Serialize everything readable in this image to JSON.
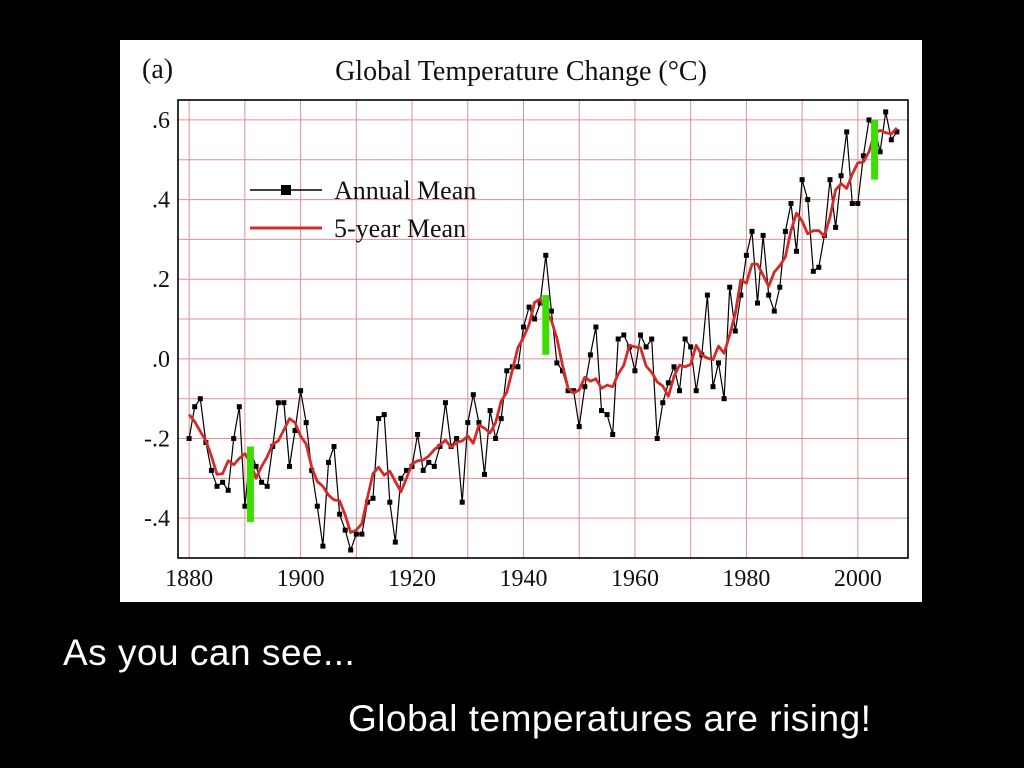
{
  "slide": {
    "caption_line1": "As you can see...",
    "caption_line2": "Global temperatures are rising!"
  },
  "figure": {
    "panel_label": "(a)",
    "title": "Global Temperature Change (°C)"
  },
  "chart_data": {
    "type": "line",
    "title": "Global Temperature Change (°C)",
    "xlabel": "",
    "ylabel": "",
    "xlim": [
      1878,
      2009
    ],
    "ylim": [
      -0.5,
      0.65
    ],
    "xticks": [
      1880,
      1900,
      1920,
      1940,
      1960,
      1980,
      2000
    ],
    "yticks": {
      "values": [
        0.6,
        0.4,
        0.2,
        0.0,
        -0.2,
        -0.4
      ],
      "labels": [
        ".6",
        ".4",
        ".2",
        ".0",
        "-.2",
        "-.4"
      ]
    },
    "grid": true,
    "legend": [
      {
        "label": "Annual Mean",
        "color": "#000000",
        "marker": "square-line"
      },
      {
        "label": "5-year Mean",
        "color": "#d42a2a",
        "marker": "line"
      }
    ],
    "colors": {
      "annual": "#000000",
      "five_year": "#d42a2a",
      "error_bar": "#3ade00",
      "grid": "#e09090",
      "axis": "#000000"
    },
    "series": [
      {
        "name": "Annual Mean",
        "x_start": 1880,
        "x_step": 1,
        "y": [
          -0.2,
          -0.12,
          -0.1,
          -0.21,
          -0.28,
          -0.32,
          -0.31,
          -0.33,
          -0.2,
          -0.12,
          -0.37,
          -0.23,
          -0.27,
          -0.31,
          -0.32,
          -0.22,
          -0.11,
          -0.11,
          -0.27,
          -0.18,
          -0.08,
          -0.16,
          -0.28,
          -0.37,
          -0.47,
          -0.26,
          -0.22,
          -0.39,
          -0.43,
          -0.48,
          -0.44,
          -0.44,
          -0.36,
          -0.35,
          -0.15,
          -0.14,
          -0.36,
          -0.46,
          -0.3,
          -0.28,
          -0.27,
          -0.19,
          -0.28,
          -0.26,
          -0.27,
          -0.22,
          -0.11,
          -0.22,
          -0.2,
          -0.36,
          -0.16,
          -0.09,
          -0.16,
          -0.29,
          -0.13,
          -0.2,
          -0.15,
          -0.03,
          -0.02,
          -0.02,
          0.08,
          0.13,
          0.1,
          0.14,
          0.26,
          0.12,
          -0.01,
          -0.03,
          -0.08,
          -0.08,
          -0.17,
          -0.07,
          0.01,
          0.08,
          -0.13,
          -0.14,
          -0.19,
          0.05,
          0.06,
          0.03,
          -0.03,
          0.06,
          0.03,
          0.05,
          -0.2,
          -0.11,
          -0.06,
          -0.02,
          -0.08,
          0.05,
          0.03,
          -0.08,
          0.01,
          0.16,
          -0.07,
          -0.01,
          -0.1,
          0.18,
          0.07,
          0.16,
          0.26,
          0.32,
          0.14,
          0.31,
          0.16,
          0.12,
          0.18,
          0.32,
          0.39,
          0.27,
          0.45,
          0.4,
          0.22,
          0.23,
          0.31,
          0.45,
          0.33,
          0.46,
          0.57,
          0.39,
          0.39,
          0.51,
          0.6,
          0.58,
          0.52,
          0.62,
          0.55,
          0.57
        ]
      },
      {
        "name": "5-year Mean",
        "derived": "centered 5-year running mean of Annual Mean series"
      }
    ],
    "error_bars": [
      {
        "x": 1891,
        "y_low": -0.41,
        "y_high": -0.22,
        "color": "#3ade00"
      },
      {
        "x": 1944,
        "y_low": 0.01,
        "y_high": 0.16,
        "color": "#3ade00"
      },
      {
        "x": 2003,
        "y_low": 0.45,
        "y_high": 0.6,
        "color": "#3ade00"
      }
    ]
  }
}
